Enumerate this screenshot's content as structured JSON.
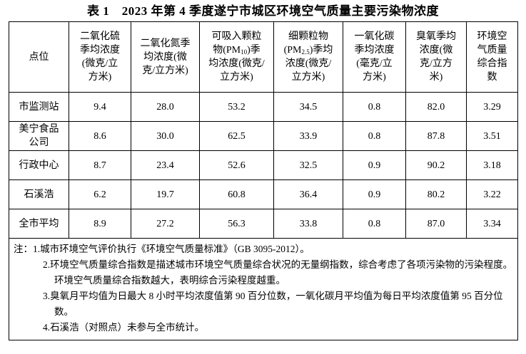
{
  "title": "表 1　2023 年第 4 季度遂宁市城区环境空气质量主要污染物浓度",
  "table": {
    "header": [
      {
        "before": "点位"
      },
      {
        "before": "二氧化硫季均浓度(微克/立方米)"
      },
      {
        "before": "二氧化氮季均浓度(微克/立方米)"
      },
      {
        "before": "可吸入颗粒物(PM",
        "sub": "10",
        "after": ")季均浓度(微克/立方米)"
      },
      {
        "before": "细颗粒物(PM",
        "sub": "2.5",
        "after": ")季均浓度(微克/立方米)"
      },
      {
        "before": "一氧化碳季均浓度(毫克/立方米)"
      },
      {
        "before": "臭氧季均浓度(微克/立方米)"
      },
      {
        "before": "环境空气质量综合指数"
      }
    ],
    "rows": [
      [
        "市监测站",
        "9.4",
        "28.0",
        "53.2",
        "34.5",
        "0.8",
        "82.0",
        "3.29"
      ],
      [
        "美宁食品公司",
        "8.6",
        "30.0",
        "62.5",
        "33.9",
        "0.8",
        "87.8",
        "3.51"
      ],
      [
        "行政中心",
        "8.7",
        "23.4",
        "52.6",
        "32.5",
        "0.9",
        "90.2",
        "3.18"
      ],
      [
        "石溪浩",
        "6.2",
        "19.7",
        "60.8",
        "36.4",
        "0.9",
        "80.2",
        "3.22"
      ],
      [
        "全市平均",
        "8.9",
        "27.2",
        "56.3",
        "33.8",
        "0.8",
        "87.0",
        "3.34"
      ]
    ],
    "notes": {
      "label": "注：",
      "items": [
        "1.城市环境空气评价执行《环境空气质量标准》（GB 3095-2012）。",
        "2.环境空气质量综合指数是描述城市环境空气质量综合状况的无量纲指数，综合考虑了各项污染物的污染程度。环境空气质量综合指数越大，表明综合污染程度越重。",
        "3.臭氧月平均值为日最大 8 小时平均浓度值第 90 百分位数，一氧化碳月平均值为每日平均浓度值第 95 百分位数。",
        "4.石溪浩（对照点）未参与全市统计。"
      ]
    }
  }
}
